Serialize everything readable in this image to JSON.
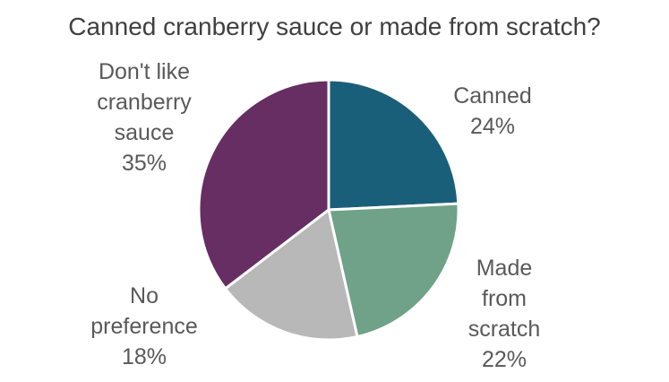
{
  "chart_data": {
    "type": "pie",
    "title": "Canned cranberry sauce or made from scratch?",
    "slices": [
      {
        "key": "canned",
        "label_lines": [
          "Canned"
        ],
        "label": "Canned",
        "value": 24,
        "value_text": "24%",
        "color": "#1a5f7a"
      },
      {
        "key": "scratch",
        "label_lines": [
          "Made",
          "from",
          "scratch"
        ],
        "label": "Made from scratch",
        "value": 22,
        "value_text": "22%",
        "color": "#6fa288"
      },
      {
        "key": "nopref",
        "label_lines": [
          "No",
          "preference"
        ],
        "label": "No preference",
        "value": 18,
        "value_text": "18%",
        "color": "#b8b8b8"
      },
      {
        "key": "dislike",
        "label_lines": [
          "Don't like",
          "cranberry",
          "sauce"
        ],
        "label": "Don't like cranberry sauce",
        "value": 35,
        "value_text": "35%",
        "color": "#662e62"
      }
    ],
    "start_angle": "12 o'clock",
    "direction": "clockwise",
    "legend": "none",
    "labels": "outside"
  }
}
